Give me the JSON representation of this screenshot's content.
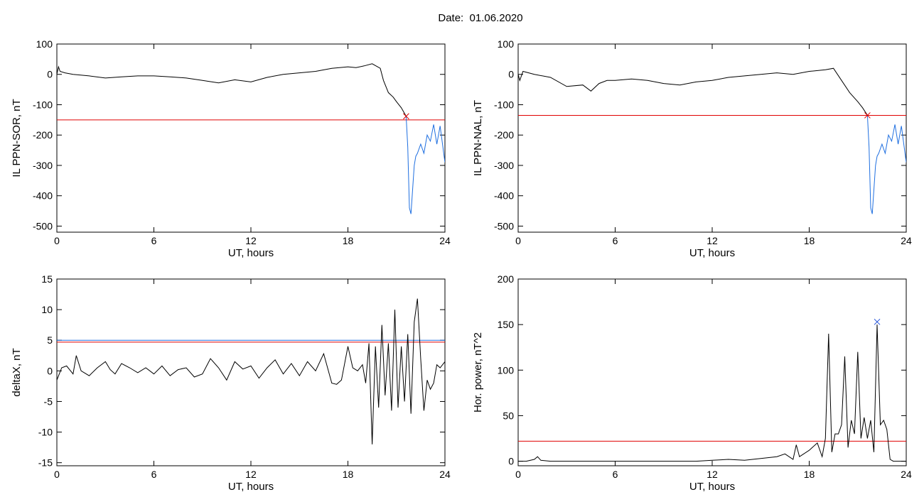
{
  "title": "Date:  01.06.2020",
  "chart_data": [
    {
      "type": "line",
      "xlabel": "UT, hours",
      "ylabel": "IL PPN-SOR, nT",
      "xlim": [
        0,
        24
      ],
      "ylim": [
        -520,
        100
      ],
      "xticks": [
        0,
        6,
        12,
        18,
        24
      ],
      "yticks": [
        -500,
        -400,
        -300,
        -200,
        -100,
        0,
        100
      ],
      "series": [
        {
          "color": "#000000",
          "x": [
            0,
            0.1,
            0.2,
            0.5,
            1,
            2,
            3,
            4,
            5,
            6,
            7,
            8,
            9,
            10,
            11,
            12,
            13,
            14,
            15,
            16,
            17,
            18,
            18.5,
            19,
            19.5,
            20,
            20.2,
            20.5,
            20.8,
            21,
            21.3,
            21.6
          ],
          "y": [
            0,
            25,
            10,
            5,
            0,
            -5,
            -12,
            -8,
            -5,
            -5,
            -8,
            -12,
            -20,
            -28,
            -18,
            -25,
            -10,
            0,
            5,
            10,
            20,
            25,
            22,
            28,
            35,
            20,
            -20,
            -60,
            -75,
            -90,
            -110,
            -138
          ]
        },
        {
          "color": "#1f6fe0",
          "x": [
            21.6,
            21.7,
            21.8,
            21.9,
            22.0,
            22.1,
            22.2,
            22.3,
            22.5,
            22.7,
            22.9,
            23.1,
            23.3,
            23.5,
            23.7,
            23.9,
            24.0
          ],
          "y": [
            -138,
            -240,
            -440,
            -460,
            -380,
            -300,
            -270,
            -260,
            -230,
            -260,
            -200,
            -220,
            -165,
            -230,
            -170,
            -250,
            -290
          ]
        }
      ],
      "threshold": {
        "value": -150,
        "color": "#e00000"
      },
      "marker": {
        "x": 21.6,
        "y": -138,
        "color": "#e00000",
        "symbol": "x"
      }
    },
    {
      "type": "line",
      "xlabel": "UT, hours",
      "ylabel": "IL PPN-NAL, nT",
      "xlim": [
        0,
        24
      ],
      "ylim": [
        -520,
        100
      ],
      "xticks": [
        0,
        6,
        12,
        18,
        24
      ],
      "yticks": [
        -500,
        -400,
        -300,
        -200,
        -100,
        0,
        100
      ],
      "series": [
        {
          "color": "#000000",
          "x": [
            0,
            0.1,
            0.3,
            1,
            2,
            3,
            4,
            4.5,
            5,
            5.5,
            6,
            7,
            8,
            9,
            10,
            11,
            12,
            13,
            14,
            15,
            16,
            17,
            18,
            19,
            19.5,
            20,
            20.5,
            21,
            21.3,
            21.6
          ],
          "y": [
            0,
            -20,
            10,
            0,
            -10,
            -40,
            -35,
            -55,
            -30,
            -20,
            -20,
            -15,
            -20,
            -30,
            -35,
            -25,
            -20,
            -10,
            -5,
            0,
            5,
            0,
            10,
            15,
            20,
            -20,
            -60,
            -90,
            -110,
            -135
          ]
        },
        {
          "color": "#1f6fe0",
          "x": [
            21.6,
            21.7,
            21.8,
            21.9,
            22.0,
            22.1,
            22.2,
            22.3,
            22.5,
            22.7,
            22.9,
            23.1,
            23.3,
            23.5,
            23.7,
            23.9,
            24.0
          ],
          "y": [
            -135,
            -240,
            -440,
            -460,
            -380,
            -300,
            -270,
            -260,
            -230,
            -260,
            -200,
            -220,
            -165,
            -230,
            -170,
            -250,
            -290
          ]
        }
      ],
      "threshold": {
        "value": -135,
        "color": "#e00000"
      },
      "marker": {
        "x": 21.6,
        "y": -135,
        "color": "#e00000",
        "symbol": "x"
      }
    },
    {
      "type": "line",
      "xlabel": "UT, hours",
      "ylabel": "deltaX, nT",
      "xlim": [
        0,
        24
      ],
      "ylim": [
        -15.5,
        15
      ],
      "xticks": [
        0,
        6,
        12,
        18,
        24
      ],
      "yticks": [
        -15,
        -10,
        -5,
        0,
        5,
        10,
        15
      ],
      "series": [
        {
          "color": "#000000",
          "x": [
            0,
            0.3,
            0.6,
            1.0,
            1.2,
            1.5,
            2.0,
            2.5,
            3.0,
            3.3,
            3.6,
            4.0,
            4.5,
            5.0,
            5.5,
            6.0,
            6.5,
            7.0,
            7.5,
            8.0,
            8.5,
            9.0,
            9.5,
            10.0,
            10.5,
            11.0,
            11.5,
            12.0,
            12.5,
            13.0,
            13.5,
            14.0,
            14.5,
            15.0,
            15.5,
            16.0,
            16.5,
            17.0,
            17.3,
            17.6,
            18.0,
            18.3,
            18.6,
            18.9,
            19.1,
            19.3,
            19.5,
            19.7,
            19.9,
            20.1,
            20.3,
            20.5,
            20.7,
            20.9,
            21.1,
            21.3,
            21.5,
            21.7,
            21.9,
            22.1,
            22.3,
            22.5,
            22.7,
            22.9,
            23.1,
            23.3,
            23.5,
            23.7,
            24.0
          ],
          "y": [
            -1.5,
            0.5,
            0.8,
            -0.5,
            2.5,
            0,
            -0.8,
            0.5,
            1.5,
            0.2,
            -0.5,
            1.2,
            0.5,
            -0.3,
            0.5,
            -0.5,
            0.8,
            -0.8,
            0.2,
            0.5,
            -1.0,
            -0.5,
            2.0,
            0.5,
            -1.5,
            1.5,
            0.3,
            0.8,
            -1.2,
            0.5,
            1.8,
            -0.5,
            1.2,
            -0.8,
            1.5,
            0,
            2.8,
            -2.0,
            -2.2,
            -1.5,
            4.0,
            0.5,
            0.0,
            1.0,
            -2.0,
            4.5,
            -12.0,
            4.0,
            -6.0,
            7.5,
            -4.0,
            4.5,
            -6.5,
            10.0,
            -6.0,
            4.0,
            -5.0,
            6.0,
            -7.0,
            8.0,
            11.8,
            2.0,
            -6.5,
            -1.5,
            -3.0,
            -2.0,
            1.0,
            0.5,
            1.5
          ]
        }
      ],
      "thresholds": [
        {
          "value": 4.7,
          "color": "#e00000"
        },
        {
          "value": 5.0,
          "color": "#1f6fe0"
        }
      ]
    },
    {
      "type": "line",
      "xlabel": "UT, hours",
      "ylabel": "Hor. power, nT^2",
      "xlim": [
        0,
        24
      ],
      "ylim": [
        -5,
        200
      ],
      "xticks": [
        0,
        6,
        12,
        18,
        24
      ],
      "yticks": [
        0,
        50,
        100,
        150,
        200
      ],
      "series": [
        {
          "color": "#000000",
          "x": [
            0,
            0.5,
            1.0,
            1.2,
            1.4,
            2,
            3,
            4,
            5,
            6,
            7,
            8,
            9,
            10,
            11,
            12,
            13,
            14,
            15,
            16,
            16.5,
            17.0,
            17.2,
            17.4,
            18.0,
            18.5,
            18.8,
            19.0,
            19.2,
            19.4,
            19.6,
            19.8,
            20.0,
            20.2,
            20.4,
            20.6,
            20.8,
            21.0,
            21.2,
            21.4,
            21.6,
            21.8,
            22.0,
            22.2,
            22.4,
            22.6,
            22.8,
            23.0,
            23.2,
            23.4,
            23.6,
            24.0
          ],
          "y": [
            0,
            0,
            2,
            5,
            1,
            0,
            0,
            0,
            0,
            0,
            0,
            0,
            0,
            0,
            0,
            1,
            2,
            1,
            3,
            5,
            8,
            2,
            18,
            5,
            12,
            20,
            5,
            25,
            140,
            10,
            30,
            30,
            40,
            115,
            15,
            45,
            30,
            120,
            25,
            48,
            25,
            45,
            10,
            150,
            40,
            45,
            35,
            2,
            0,
            0,
            0,
            0
          ]
        }
      ],
      "threshold": {
        "value": 22,
        "color": "#e00000"
      },
      "marker": {
        "x": 22.2,
        "y": 153,
        "color": "#1f4fd8",
        "symbol": "x"
      }
    }
  ]
}
